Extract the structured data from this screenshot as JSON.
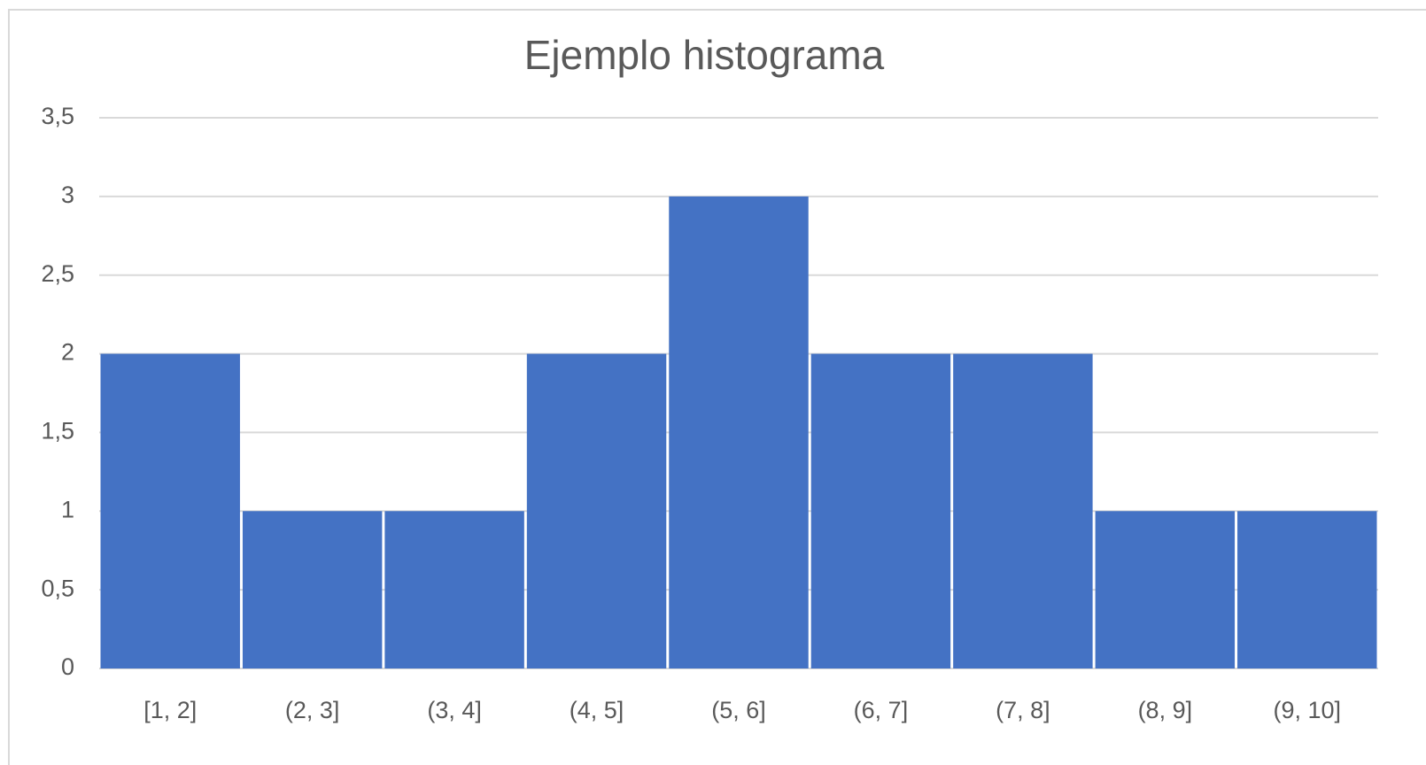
{
  "chart_data": {
    "type": "bar",
    "title": "Ejemplo histograma",
    "categories": [
      "[1, 2]",
      "(2, 3]",
      "(3, 4]",
      "(4, 5]",
      "(5, 6]",
      "(6, 7]",
      "(7, 8]",
      "(8, 9]",
      "(9, 10]"
    ],
    "values": [
      2,
      1,
      1,
      2,
      3,
      2,
      2,
      1,
      1
    ],
    "color": "#4472c4",
    "ylim": [
      0,
      3.5
    ],
    "yticks": [
      0,
      {
        "value": 0.5,
        "label": "0,5"
      },
      1,
      {
        "value": 1.5,
        "label": "1,5"
      },
      2,
      {
        "value": 2.5,
        "label": "2,5"
      },
      3,
      {
        "value": 3.5,
        "label": "3,5"
      }
    ],
    "grid": true
  }
}
